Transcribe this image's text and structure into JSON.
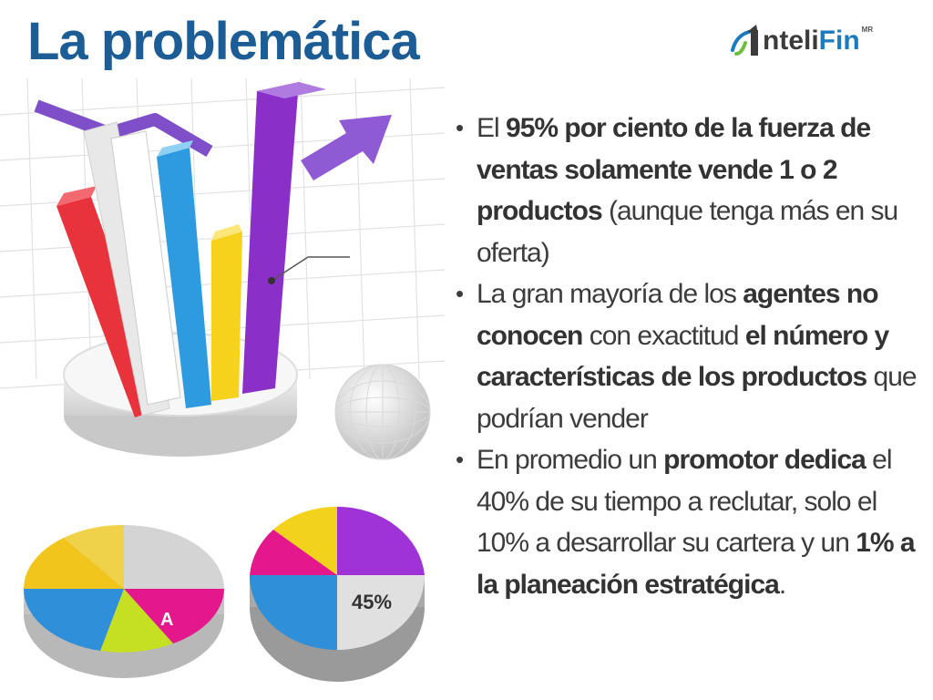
{
  "slide": {
    "title": "La problemática"
  },
  "logo": {
    "part1": "nteli",
    "part2": "Fin",
    "mark": "MR",
    "icon": "chart-arrow-logo-icon"
  },
  "illustration": {
    "pie_label_a": "A",
    "pie_label_pct": "45%"
  },
  "bullets": [
    {
      "seg1": "El ",
      "bold1": "95% por ciento de la fuerza de ventas solamente vende 1 o 2 productos",
      "seg2": " (aunque tenga más en su oferta)"
    },
    {
      "seg1": "La gran mayoría de los ",
      "bold1": "agentes no conocen",
      "seg2": " con exactitud ",
      "bold2": "el número y características de los productos",
      "seg3": " que podrían vender"
    },
    {
      "seg1": "En promedio un ",
      "bold1": "promotor dedica",
      "seg2": " el 40% de su tiempo a reclutar, solo el 10% a desarrollar su cartera y un ",
      "bold2": "1% a la planeación estratégica",
      "seg3": "."
    }
  ],
  "colors": {
    "title": "#1c5d96",
    "bar_red": "#e8323c",
    "bar_white": "#e6e6e6",
    "bar_blue": "#2e9be0",
    "bar_yellow": "#f6d21c",
    "bar_purple": "#8a30c9",
    "pie_magenta": "#e5178d",
    "pie_blue": "#2f8fd8"
  }
}
